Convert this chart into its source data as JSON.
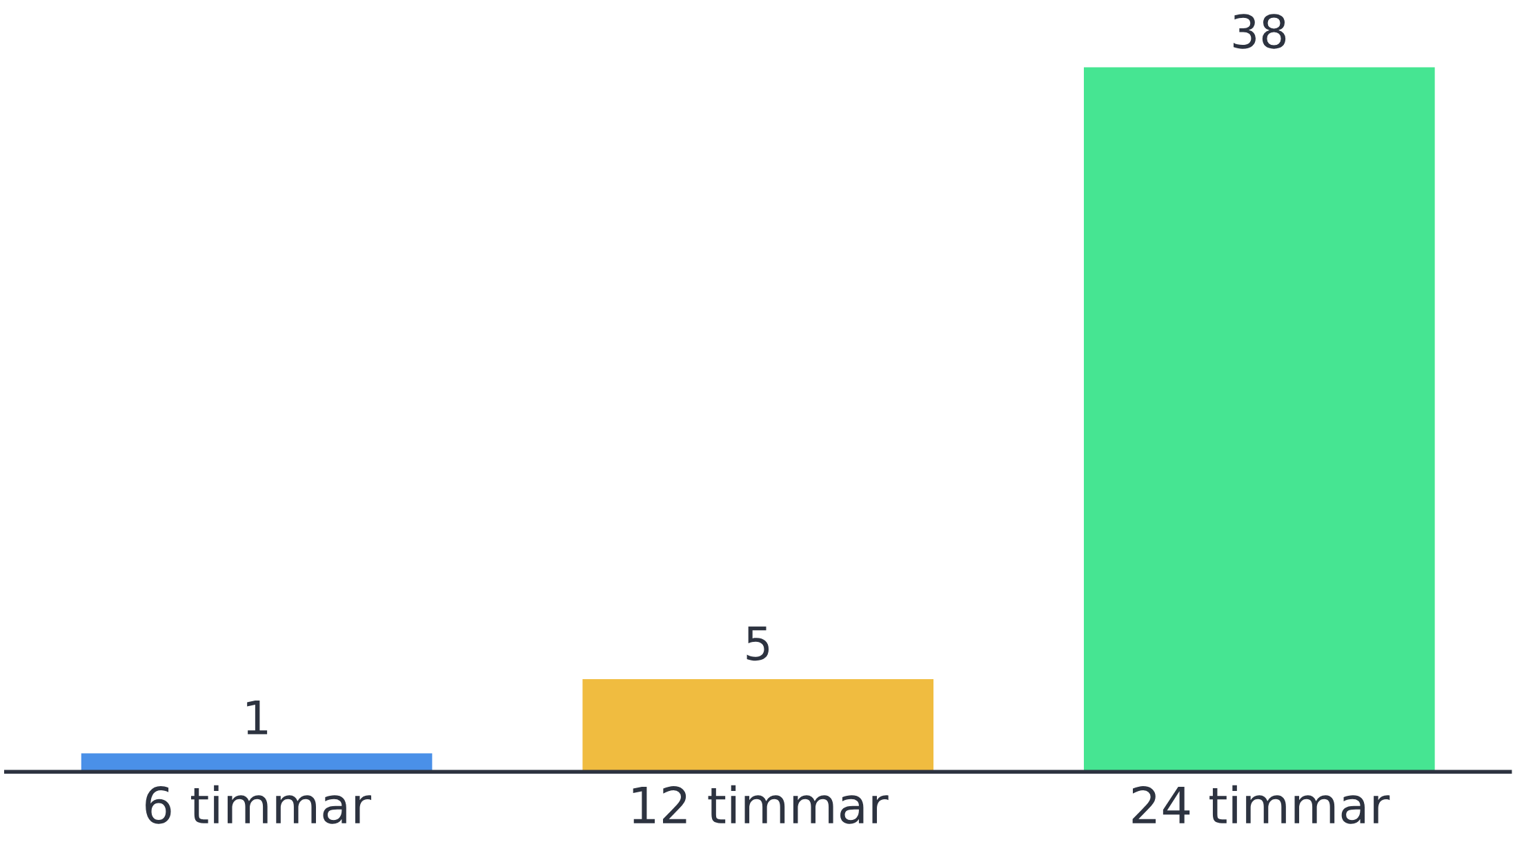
{
  "chart_data": {
    "type": "bar",
    "categories": [
      "6 timmar",
      "12 timmar",
      "24 timmar"
    ],
    "values": [
      1,
      5,
      38
    ],
    "colors": [
      "#4a90e8",
      "#f0bc40",
      "#46e592"
    ],
    "data_labels": true,
    "grid": false
  }
}
